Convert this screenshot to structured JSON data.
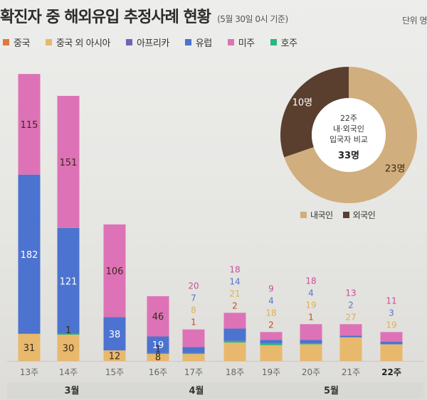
{
  "header": {
    "title": "확진자 중 해외유입 추정사례 현황",
    "subtitle": "(5월 30일 0시 기준)",
    "unit": "단위 명"
  },
  "colors": {
    "china": "#e0793a",
    "china_excl_asia": "#e8b86c",
    "africa": "#7561b9",
    "europe": "#4c73cf",
    "americas": "#de72b6",
    "oceania": "#2cb57e",
    "domestic": "#d1ae7d",
    "foreign": "#5a3f2f"
  },
  "chart_data": [
    {
      "type": "bar",
      "stacked": true,
      "categories": [
        "13주",
        "14주",
        "15주",
        "16주",
        "17주",
        "18주",
        "19주",
        "20주",
        "21주",
        "22주"
      ],
      "months": [
        {
          "label": "3월",
          "weeks": [
            "13주",
            "14주",
            "15주"
          ]
        },
        {
          "label": "4월",
          "weeks": [
            "16주",
            "17주",
            "18주"
          ]
        },
        {
          "label": "5월",
          "weeks": [
            "19주",
            "20주",
            "21주",
            "22주"
          ]
        }
      ],
      "series": [
        {
          "name": "중국",
          "key": "china",
          "values": [
            0,
            0,
            0,
            0,
            0,
            0,
            0,
            0,
            0,
            0
          ]
        },
        {
          "name": "중국 외 아시아",
          "key": "china_excl_asia",
          "values": [
            31,
            30,
            12,
            8,
            8,
            21,
            18,
            19,
            27,
            19
          ]
        },
        {
          "name": "아프리카",
          "key": "africa",
          "values": [
            0,
            0,
            0,
            0,
            0,
            0,
            0,
            0,
            0,
            0
          ]
        },
        {
          "name": "유럽",
          "key": "europe",
          "values": [
            182,
            121,
            38,
            19,
            7,
            14,
            4,
            4,
            2,
            3
          ]
        },
        {
          "name": "미주",
          "key": "americas",
          "values": [
            115,
            151,
            106,
            46,
            20,
            18,
            9,
            18,
            13,
            11
          ]
        },
        {
          "name": "호주",
          "key": "oceania",
          "values": [
            0,
            1,
            0,
            1,
            1,
            2,
            2,
            1,
            0,
            0
          ]
        }
      ],
      "ylim": [
        0,
        320
      ],
      "grid": false
    },
    {
      "type": "pie",
      "donut": true,
      "center_label": [
        "22주",
        "내·외국인",
        "입국자 비교"
      ],
      "total": "33명",
      "slices": [
        {
          "name": "내국인",
          "key": "domestic",
          "value": 23,
          "label": "23명"
        },
        {
          "name": "외국인",
          "key": "foreign",
          "value": 10,
          "label": "10명"
        }
      ]
    }
  ]
}
